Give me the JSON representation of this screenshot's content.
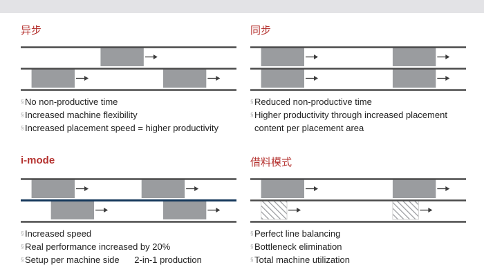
{
  "colors": {
    "title": "#b5322f",
    "rail": "#4a4a4a",
    "rail_highlight": "#14375a",
    "block": "#9a9c9f",
    "arrow": "#3c3c3c",
    "text": "#222222",
    "bullet_mark": "#aaaaaa"
  },
  "bullet_glyph": "§",
  "quadrants": [
    {
      "id": "async",
      "title": "异步",
      "bullets": [
        "No non-productive time",
        "Increased machine flexibility",
        "Increased placement speed = higher productivity"
      ],
      "lanes": [
        {
          "blocks": [
            {
              "start": 0.37,
              "end": 0.57,
              "style": "solid"
            }
          ]
        },
        {
          "blocks": [
            {
              "start": 0.05,
              "end": 0.25,
              "style": "solid"
            },
            {
              "start": 0.66,
              "end": 0.86,
              "style": "solid"
            }
          ]
        }
      ]
    },
    {
      "id": "sync",
      "title": "同步",
      "bullets": [
        "Reduced non-productive time",
        "Higher productivity through increased placement content per placement area"
      ],
      "lanes": [
        {
          "blocks": [
            {
              "start": 0.05,
              "end": 0.25,
              "style": "solid"
            },
            {
              "start": 0.66,
              "end": 0.86,
              "style": "solid"
            }
          ]
        },
        {
          "blocks": [
            {
              "start": 0.05,
              "end": 0.25,
              "style": "solid"
            },
            {
              "start": 0.66,
              "end": 0.86,
              "style": "solid"
            }
          ]
        }
      ]
    },
    {
      "id": "imode",
      "title": "i-mode",
      "bullets": [
        "Increased speed",
        "Real performance increased by 20%",
        "Setup per machine side      2-in-1 production"
      ],
      "lanes": [
        {
          "blocks": [
            {
              "start": 0.05,
              "end": 0.25,
              "style": "solid"
            },
            {
              "start": 0.56,
              "end": 0.76,
              "style": "solid"
            }
          ]
        },
        {
          "blocks": [
            {
              "start": 0.14,
              "end": 0.34,
              "style": "solid"
            },
            {
              "start": 0.66,
              "end": 0.86,
              "style": "solid"
            }
          ]
        }
      ]
    },
    {
      "id": "borrow",
      "title": "借料模式",
      "bullets": [
        "Perfect line balancing",
        "Bottleneck elimination",
        "Total machine utilization"
      ],
      "lanes": [
        {
          "blocks": [
            {
              "start": 0.05,
              "end": 0.25,
              "style": "solid"
            },
            {
              "start": 0.66,
              "end": 0.86,
              "style": "solid"
            }
          ]
        },
        {
          "blocks": [
            {
              "start": 0.05,
              "end": 0.17,
              "style": "hatched"
            },
            {
              "start": 0.66,
              "end": 0.78,
              "style": "hatched"
            }
          ]
        }
      ]
    }
  ]
}
